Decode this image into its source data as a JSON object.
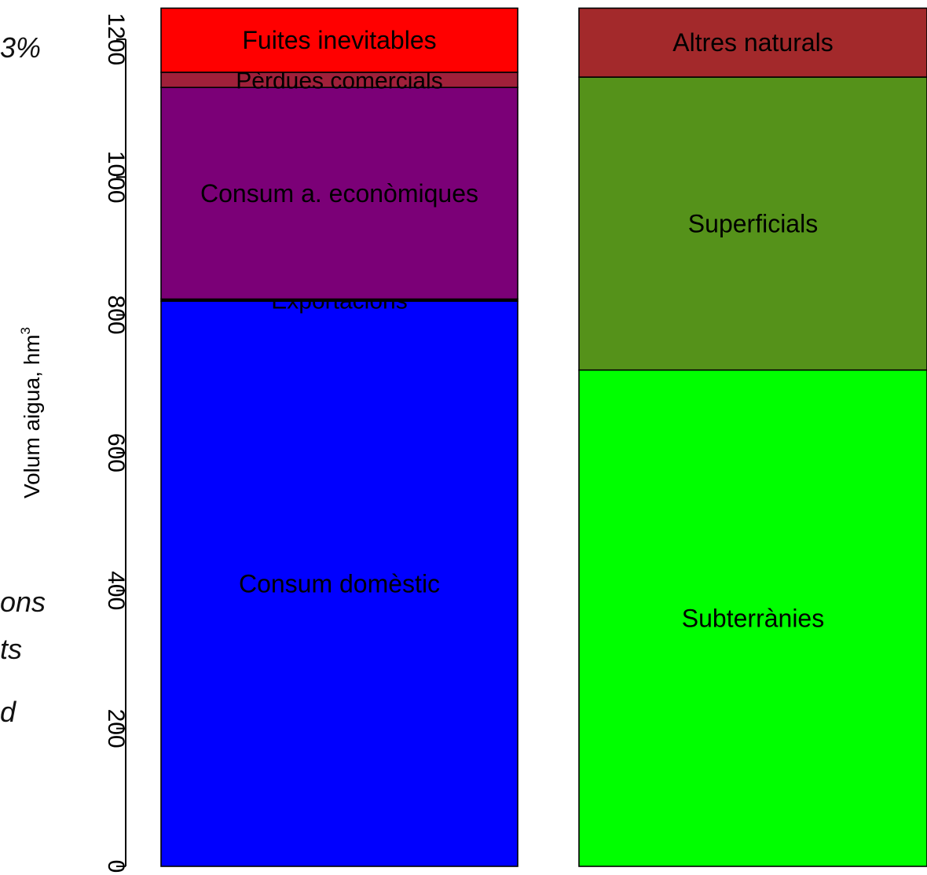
{
  "side_text_fragments": [
    "3%",
    "ons",
    "ts",
    "d"
  ],
  "chart_data": {
    "type": "bar",
    "stacked": true,
    "ylabel": "Volum aigua, hm",
    "ylabel_superscript": "3",
    "ylim": [
      0,
      1250
    ],
    "yticks": [
      0,
      200,
      400,
      600,
      800,
      1000,
      1200
    ],
    "ytick_labels": [
      "0",
      "200",
      "400",
      "600",
      "800",
      "1000",
      "1200"
    ],
    "grid": false,
    "legend": "none",
    "bars": [
      {
        "name": "",
        "segments": [
          {
            "label": "Consum domèstic",
            "value": 820,
            "color": "#0000FF"
          },
          {
            "label": "Exportacions",
            "value": 3,
            "color": "#000000"
          },
          {
            "label": "Consum a. econòmiques",
            "value": 307,
            "color": "#7B0077"
          },
          {
            "label": "Pèrdues comercials",
            "value": 22,
            "color": "#A0203A"
          },
          {
            "label": "Fuites inevitables",
            "value": 93,
            "color": "#FF0000"
          }
        ]
      },
      {
        "name": "",
        "segments": [
          {
            "label": "Subterrànies",
            "value": 720,
            "color": "#00FF00"
          },
          {
            "label": "Superficials",
            "value": 425,
            "color": "#55921A"
          },
          {
            "label": "Altres naturals",
            "value": 100,
            "color": "#A3292B"
          }
        ]
      }
    ]
  }
}
